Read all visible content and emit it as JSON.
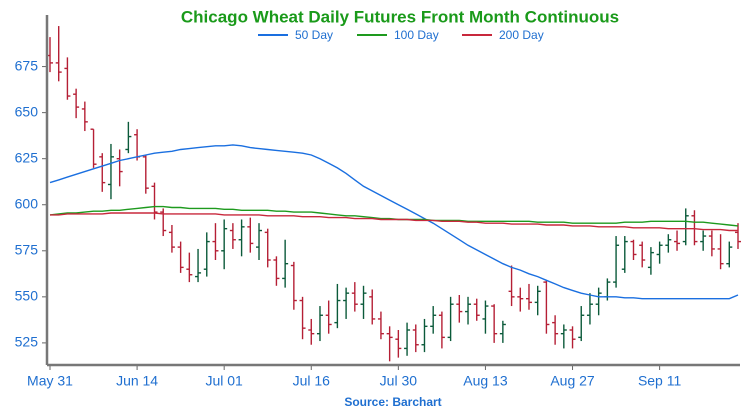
{
  "chart_data": {
    "type": "ohlc",
    "title": "Chicago Wheat Daily Futures Front Month Continuous",
    "source": "Source: Barchart",
    "title_color": "#1a9a1a",
    "up_color": "#0b5a3a",
    "down_color": "#b51f35",
    "categories": [
      "May 31",
      null,
      null,
      null,
      null,
      null,
      null,
      null,
      null,
      null,
      "Jun 14",
      null,
      null,
      null,
      null,
      null,
      null,
      null,
      null,
      null,
      "Jul 01",
      null,
      null,
      null,
      null,
      null,
      null,
      null,
      null,
      null,
      "Jul 16",
      null,
      null,
      null,
      null,
      null,
      null,
      null,
      null,
      null,
      "Jul 30",
      null,
      null,
      null,
      null,
      null,
      null,
      null,
      null,
      null,
      "Aug 13",
      null,
      null,
      null,
      null,
      null,
      null,
      null,
      null,
      null,
      "Aug 27",
      null,
      null,
      null,
      null,
      null,
      null,
      null,
      null,
      null,
      "Sep 11",
      null,
      null,
      null,
      null,
      null,
      null,
      null,
      null,
      null
    ],
    "open": [
      681,
      677,
      674,
      660,
      652,
      641,
      626,
      611,
      625,
      630,
      638,
      626,
      610,
      596,
      585,
      577,
      565,
      561,
      565,
      580,
      575,
      586,
      581,
      588,
      577,
      585,
      570,
      560,
      567,
      548,
      532,
      530,
      540,
      536,
      548,
      552,
      546,
      550,
      538,
      530,
      527,
      522,
      532,
      524,
      534,
      540,
      528,
      546,
      542,
      546,
      538,
      545,
      530,
      553,
      550,
      549,
      547,
      558,
      536,
      530,
      532,
      528,
      540,
      546,
      550,
      558,
      565,
      580,
      578,
      566,
      573,
      578,
      580,
      580,
      594,
      580,
      583,
      576,
      568,
      585
    ],
    "high": [
      691,
      697,
      680,
      663,
      656,
      641,
      628,
      633,
      630,
      645,
      641,
      627,
      612,
      598,
      589,
      580,
      574,
      576,
      585,
      590,
      592,
      590,
      592,
      593,
      590,
      587,
      572,
      581,
      569,
      550,
      538,
      545,
      548,
      557,
      555,
      558,
      556,
      554,
      542,
      534,
      532,
      536,
      535,
      538,
      545,
      542,
      550,
      551,
      550,
      549,
      548,
      546,
      537,
      567,
      555,
      557,
      556,
      559,
      540,
      535,
      534,
      545,
      552,
      555,
      560,
      583,
      583,
      581,
      580,
      577,
      580,
      584,
      586,
      598,
      597,
      586,
      586,
      584,
      580,
      590
    ],
    "low": [
      672,
      667,
      657,
      647,
      640,
      620,
      607,
      603,
      610,
      628,
      624,
      606,
      592,
      583,
      574,
      563,
      558,
      558,
      561,
      570,
      565,
      576,
      572,
      574,
      570,
      566,
      556,
      555,
      543,
      527,
      524,
      526,
      530,
      533,
      538,
      542,
      538,
      535,
      527,
      515,
      517,
      518,
      520,
      520,
      530,
      522,
      526,
      536,
      535,
      537,
      530,
      525,
      525,
      545,
      542,
      543,
      540,
      530,
      524,
      522,
      522,
      526,
      535,
      540,
      548,
      555,
      563,
      570,
      566,
      562,
      568,
      574,
      575,
      578,
      578,
      575,
      572,
      565,
      566,
      576
    ],
    "close": [
      677,
      672,
      659,
      653,
      645,
      622,
      612,
      626,
      618,
      637,
      626,
      609,
      596,
      586,
      577,
      566,
      562,
      563,
      580,
      575,
      587,
      581,
      588,
      579,
      586,
      570,
      560,
      568,
      548,
      533,
      530,
      540,
      535,
      548,
      552,
      546,
      552,
      538,
      530,
      528,
      522,
      532,
      524,
      534,
      540,
      528,
      546,
      542,
      546,
      540,
      545,
      530,
      535,
      550,
      549,
      547,
      553,
      535,
      530,
      532,
      527,
      540,
      546,
      552,
      558,
      578,
      580,
      573,
      570,
      574,
      578,
      581,
      579,
      594,
      580,
      583,
      576,
      568,
      577,
      580
    ],
    "series": [
      {
        "name": "50 Day",
        "color": "#1a6fe0",
        "values": [
          612,
          613.5,
          615,
          616.5,
          618,
          619.5,
          621,
          622.5,
          624,
          625,
          626,
          627,
          628,
          628.5,
          629,
          630,
          630.5,
          631,
          631.5,
          632,
          632,
          632.5,
          632,
          631,
          630.5,
          630,
          629.5,
          629,
          628.5,
          628,
          627,
          625,
          622.5,
          620,
          617,
          613.5,
          610,
          607.5,
          605,
          602.5,
          600,
          597.5,
          595,
          592.5,
          590,
          587,
          584,
          581,
          578,
          575.5,
          573,
          570.5,
          568,
          566,
          564.5,
          562.5,
          561,
          559,
          557,
          555,
          553.5,
          552,
          551,
          550,
          550,
          550,
          549.5,
          549.5,
          549,
          549,
          549,
          549,
          549,
          549,
          549,
          549,
          549,
          549,
          549,
          551
        ]
      },
      {
        "name": "100 Day",
        "color": "#1e9a1e",
        "values": [
          594.5,
          595,
          595.5,
          595.5,
          596,
          596.5,
          596.5,
          597,
          597,
          597.5,
          598,
          598.5,
          599,
          599,
          598.5,
          598.5,
          598,
          598,
          598,
          598,
          597.5,
          597.5,
          597,
          597,
          597,
          597,
          596.5,
          596.5,
          596,
          596,
          596,
          595.5,
          595,
          594.5,
          594,
          594,
          593.5,
          593,
          592.5,
          592.5,
          592,
          592,
          592,
          592,
          591.5,
          591.5,
          591.5,
          591.5,
          591,
          591,
          591,
          591,
          591,
          591,
          591,
          591,
          590.5,
          590.5,
          590.5,
          590.5,
          590,
          590,
          590,
          590,
          590,
          590,
          590.5,
          590.5,
          590.5,
          591,
          591,
          591,
          591,
          591,
          590.5,
          590.5,
          590,
          589.5,
          589,
          588.5
        ]
      },
      {
        "name": "200 Day",
        "color": "#c8283c",
        "values": [
          594.5,
          594.5,
          595,
          595,
          595,
          595,
          595,
          595.5,
          595.5,
          595.5,
          595.5,
          595.5,
          595.5,
          595,
          595,
          595,
          595,
          595,
          595,
          595,
          594.5,
          594.5,
          594.5,
          594.5,
          594.5,
          594,
          594,
          594,
          594,
          593.5,
          593.5,
          593.5,
          593,
          593,
          593,
          592.5,
          592.5,
          592.5,
          592,
          592,
          592,
          592,
          591.5,
          591.5,
          591.5,
          591,
          591,
          591,
          590.5,
          590.5,
          590,
          590,
          590,
          589.5,
          589.5,
          589.5,
          589.5,
          589,
          589,
          589,
          588.5,
          588.5,
          588.5,
          588,
          588,
          588,
          588,
          587.5,
          587.5,
          587.5,
          587.5,
          587,
          587,
          587,
          587,
          586.5,
          586.5,
          586.5,
          586,
          586
        ]
      }
    ],
    "ylim": [
      513,
      703
    ],
    "yticks": [
      525,
      550,
      575,
      600,
      625,
      650,
      675
    ]
  }
}
